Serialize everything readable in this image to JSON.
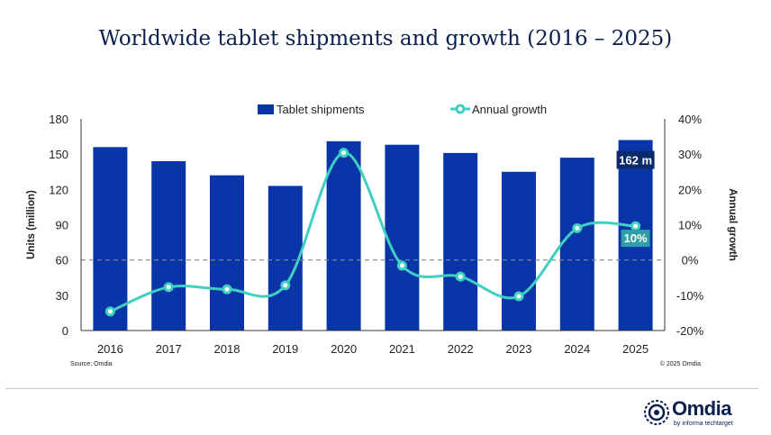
{
  "title": "Worldwide tablet shipments and growth (2016 – 2025)",
  "chart_data": {
    "type": "bar",
    "categories": [
      "2016",
      "2017",
      "2018",
      "2019",
      "2020",
      "2021",
      "2022",
      "2023",
      "2024",
      "2025"
    ],
    "series": [
      {
        "name": "Tablet shipments",
        "axis": "left",
        "type": "bar",
        "color": "#0a35a8",
        "values": [
          156,
          144,
          132,
          123,
          161,
          158,
          151,
          135,
          147,
          162
        ]
      },
      {
        "name": "Annual growth",
        "axis": "right",
        "type": "line",
        "color": "#3fd0c2",
        "values": [
          -14.6,
          -7.7,
          -8.3,
          -7.2,
          30.4,
          -1.6,
          -4.7,
          -10.3,
          9.0,
          9.6
        ]
      }
    ],
    "ylabel": "Units (million)",
    "y2label": "Annual growth",
    "ylim": [
      0,
      180
    ],
    "yticks": [
      "0",
      "30",
      "60",
      "90",
      "120",
      "150",
      "180"
    ],
    "y2lim": [
      -20,
      40
    ],
    "y2ticks": [
      "-20%",
      "-10%",
      "0%",
      "10%",
      "20%",
      "30%",
      "40%"
    ],
    "annotations": {
      "bar_label": "162 m",
      "growth_label": "10%"
    },
    "legend_position": "top"
  },
  "source": "Source: Omdia",
  "copyright": "© 2025 Omdia",
  "logo": {
    "word": "Omdia",
    "tagline": "by informa techtarget"
  }
}
